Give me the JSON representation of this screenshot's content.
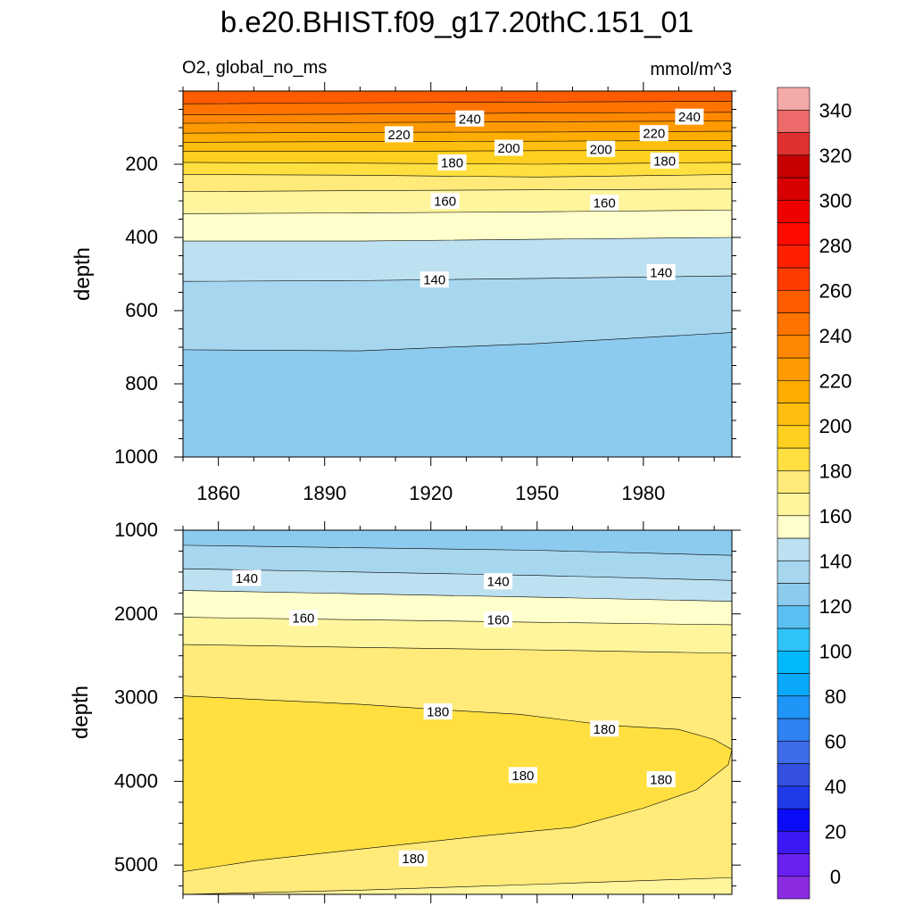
{
  "chart_data": [
    {
      "type": "contour",
      "title": "b.e20.BHIST.f09_g17.20thC.151_01",
      "subtitle_left": "O2, global_no_ms",
      "subtitle_right": "mmol/m^3",
      "xlabel": "",
      "ylabel": "depth",
      "xlim": [
        1850,
        2005
      ],
      "ylim": [
        1000,
        0
      ],
      "x_ticks": [
        1860,
        1890,
        1920,
        1950,
        1980
      ],
      "y_ticks": [
        200,
        400,
        600,
        800,
        1000
      ],
      "contour_levels": [
        140,
        160,
        180,
        200,
        220,
        240
      ],
      "contour_labels": [
        {
          "value": 240,
          "x": 1931,
          "y": 75
        },
        {
          "value": 240,
          "x": 1993,
          "y": 70
        },
        {
          "value": 220,
          "x": 1911,
          "y": 118
        },
        {
          "value": 220,
          "x": 1983,
          "y": 115
        },
        {
          "value": 200,
          "x": 1942,
          "y": 155
        },
        {
          "value": 200,
          "x": 1968,
          "y": 158
        },
        {
          "value": 180,
          "x": 1926,
          "y": 195
        },
        {
          "value": 180,
          "x": 1986,
          "y": 190
        },
        {
          "value": 160,
          "x": 1924,
          "y": 300
        },
        {
          "value": 160,
          "x": 1969,
          "y": 305
        },
        {
          "value": 140,
          "x": 1921,
          "y": 515
        },
        {
          "value": 140,
          "x": 1985,
          "y": 495
        }
      ],
      "boundaries": [
        {
          "value": 250,
          "points": [
            [
              1850,
              35
            ],
            [
              1900,
              32
            ],
            [
              1950,
              30
            ],
            [
              2005,
              28
            ]
          ]
        },
        {
          "value": 240,
          "points": [
            [
              1850,
              65
            ],
            [
              1900,
              63
            ],
            [
              1950,
              60
            ],
            [
              2005,
              58
            ]
          ]
        },
        {
          "value": 230,
          "points": [
            [
              1850,
              88
            ],
            [
              1900,
              86
            ],
            [
              1950,
              84
            ],
            [
              2005,
              82
            ]
          ]
        },
        {
          "value": 220,
          "points": [
            [
              1850,
              115
            ],
            [
              1900,
              113
            ],
            [
              1950,
              112
            ],
            [
              2005,
              110
            ]
          ]
        },
        {
          "value": 210,
          "points": [
            [
              1850,
              140
            ],
            [
              1900,
              138
            ],
            [
              1950,
              137
            ],
            [
              2005,
              135
            ]
          ]
        },
        {
          "value": 200,
          "points": [
            [
              1850,
              165
            ],
            [
              1900,
              165
            ],
            [
              1950,
              163
            ],
            [
              2005,
              162
            ]
          ]
        },
        {
          "value": 190,
          "points": [
            [
              1850,
              195
            ],
            [
              1900,
              197
            ],
            [
              1950,
              200
            ],
            [
              2005,
              195
            ]
          ]
        },
        {
          "value": 180,
          "points": [
            [
              1850,
              228
            ],
            [
              1900,
              230
            ],
            [
              1950,
              235
            ],
            [
              2005,
              228
            ]
          ]
        },
        {
          "value": 170,
          "points": [
            [
              1850,
              275
            ],
            [
              1900,
              272
            ],
            [
              1950,
              270
            ],
            [
              2005,
              268
            ]
          ]
        },
        {
          "value": 160,
          "points": [
            [
              1850,
              335
            ],
            [
              1900,
              333
            ],
            [
              1950,
              330
            ],
            [
              2005,
              325
            ]
          ]
        },
        {
          "value": 150,
          "points": [
            [
              1850,
              410
            ],
            [
              1900,
              410
            ],
            [
              1950,
              405
            ],
            [
              2005,
              400
            ]
          ]
        },
        {
          "value": 140,
          "points": [
            [
              1850,
              520
            ],
            [
              1900,
              518
            ],
            [
              1950,
              512
            ],
            [
              2005,
              505
            ]
          ]
        },
        {
          "value": 130,
          "points": [
            [
              1850,
              707
            ],
            [
              1900,
              710
            ],
            [
              1950,
              690
            ],
            [
              2005,
              660
            ]
          ]
        }
      ]
    },
    {
      "type": "contour",
      "xlabel": "",
      "ylabel": "depth",
      "xlim": [
        1850,
        2005
      ],
      "ylim": [
        5350,
        1000
      ],
      "x_ticks": [
        1860,
        1890,
        1920,
        1950,
        1980
      ],
      "y_ticks": [
        1000,
        2000,
        3000,
        4000,
        5000
      ],
      "contour_levels": [
        140,
        160,
        180
      ],
      "contour_labels": [
        {
          "value": 140,
          "x": 1868,
          "y": 1570
        },
        {
          "value": 140,
          "x": 1939,
          "y": 1610
        },
        {
          "value": 160,
          "x": 1884,
          "y": 2045
        },
        {
          "value": 160,
          "x": 1939,
          "y": 2065
        },
        {
          "value": 180,
          "x": 1922,
          "y": 3165
        },
        {
          "value": 180,
          "x": 1946,
          "y": 3925
        },
        {
          "value": 180,
          "x": 1969,
          "y": 3370
        },
        {
          "value": 180,
          "x": 1985,
          "y": 3975
        },
        {
          "value": 180,
          "x": 1915,
          "y": 4920
        }
      ],
      "boundaries": [
        {
          "value": 130,
          "points": [
            [
              1850,
              1180
            ],
            [
              1900,
              1210
            ],
            [
              1950,
              1240
            ],
            [
              2005,
              1300
            ]
          ]
        },
        {
          "value": 140,
          "points": [
            [
              1850,
              1460
            ],
            [
              1900,
              1500
            ],
            [
              1950,
              1540
            ],
            [
              2005,
              1600
            ]
          ]
        },
        {
          "value": 150,
          "points": [
            [
              1850,
              1720
            ],
            [
              1900,
              1760
            ],
            [
              1950,
              1800
            ],
            [
              2005,
              1850
            ]
          ]
        },
        {
          "value": 160,
          "points": [
            [
              1850,
              2040
            ],
            [
              1900,
              2070
            ],
            [
              1950,
              2100
            ],
            [
              2005,
              2130
            ]
          ]
        },
        {
          "value": 170,
          "points": [
            [
              1850,
              2365
            ],
            [
              1900,
              2400
            ],
            [
              1950,
              2430
            ],
            [
              2005,
              2470
            ]
          ]
        }
      ],
      "core_region": {
        "value": 185,
        "top": [
          [
            1850,
            2980
          ],
          [
            1900,
            3080
          ],
          [
            1925,
            3150
          ],
          [
            1945,
            3200
          ],
          [
            1970,
            3330
          ],
          [
            1990,
            3380
          ],
          [
            2000,
            3500
          ],
          [
            2005,
            3620
          ]
        ],
        "bottom": [
          [
            2005,
            3620
          ],
          [
            2004,
            3800
          ],
          [
            1995,
            4100
          ],
          [
            1980,
            4320
          ],
          [
            1960,
            4550
          ],
          [
            1935,
            4650
          ],
          [
            1900,
            4810
          ],
          [
            1870,
            4950
          ],
          [
            1850,
            5080
          ]
        ]
      },
      "bottom_edge": {
        "value": 170,
        "points": [
          [
            1850,
            5350
          ],
          [
            1900,
            5300
          ],
          [
            1950,
            5230
          ],
          [
            2005,
            5150
          ]
        ]
      }
    }
  ],
  "colorbar": {
    "tick_labels": [
      "0",
      "20",
      "40",
      "60",
      "80",
      "100",
      "120",
      "140",
      "160",
      "180",
      "200",
      "220",
      "240",
      "260",
      "280",
      "300",
      "320",
      "340"
    ],
    "colors": [
      "#8a2be2",
      "#6a20f0",
      "#3c18f5",
      "#0a0cf8",
      "#1f3ae8",
      "#3350e0",
      "#3e6be8",
      "#2f82f2",
      "#1e96f8",
      "#0aa8fa",
      "#00b8fa",
      "#2ec4fa",
      "#5ac0f2",
      "#8ccbee",
      "#a7d6ef",
      "#bde1f1",
      "#ffffcc",
      "#fff59c",
      "#ffea7a",
      "#ffe040",
      "#ffd020",
      "#ffbf10",
      "#ffad00",
      "#ff9a00",
      "#ff8800",
      "#ff7400",
      "#ff5c00",
      "#ff3c00",
      "#ff2000",
      "#ff0a00",
      "#ee0000",
      "#d80000",
      "#c60000",
      "#e03030",
      "#ec6a6a",
      "#f5aaaa"
    ],
    "range": [
      -10,
      350
    ],
    "step": 10
  }
}
